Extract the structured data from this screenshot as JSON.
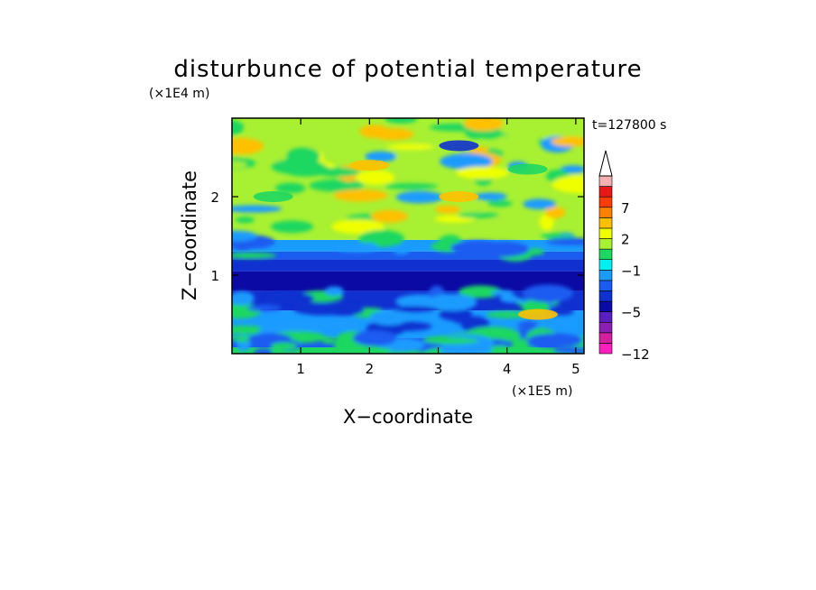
{
  "chart_data": {
    "type": "heatmap",
    "title": "disturbunce of potential temperature",
    "time_label": "t=127800 s",
    "xlabel": "X−coordinate",
    "ylabel": "Z−coordinate",
    "x_unit": "(×1E5 m)",
    "y_unit": "(×1E4 m)",
    "xlim": [
      0,
      5.12
    ],
    "ylim": [
      0,
      3.0
    ],
    "x_ticks": [
      "1",
      "2",
      "3",
      "4",
      "5"
    ],
    "y_ticks": [
      "1",
      "2"
    ],
    "colorbar": {
      "levels": [
        -12,
        -11,
        -9,
        -7,
        -5,
        -4,
        -3,
        -2,
        -1,
        0,
        1,
        2,
        3,
        5,
        7,
        9,
        11
      ],
      "colors": [
        "#ff1fbf",
        "#d41f9e",
        "#8c1fb3",
        "#5a1fc0",
        "#0b0aa5",
        "#1030d0",
        "#1a5cf0",
        "#1a9bff",
        "#00f0f0",
        "#1ed760",
        "#a8f032",
        "#f0ff00",
        "#ffc000",
        "#ff8000",
        "#ff3c00",
        "#e81818",
        "#f4b0b0"
      ],
      "tick_labels": [
        "7",
        "2",
        "−1",
        "−5",
        "−12"
      ],
      "tick_values": [
        7,
        2,
        -1,
        -5,
        -12
      ],
      "extend": "max"
    },
    "bands": [
      {
        "z_range": [
          0.0,
          0.08
        ],
        "value": 0
      },
      {
        "z_range": [
          0.08,
          0.2
        ],
        "value": -2.5
      },
      {
        "z_range": [
          0.2,
          0.55
        ],
        "value": -1.5
      },
      {
        "z_range": [
          0.55,
          0.8
        ],
        "value": -3.5
      },
      {
        "z_range": [
          0.8,
          1.05
        ],
        "value": -4.5
      },
      {
        "z_range": [
          1.05,
          1.2
        ],
        "value": -3.5
      },
      {
        "z_range": [
          1.2,
          1.3
        ],
        "value": -2.5
      },
      {
        "z_range": [
          1.3,
          1.45
        ],
        "value": -1.5
      },
      {
        "z_range": [
          1.45,
          3.0
        ],
        "value": 1.5
      }
    ],
    "features": [
      {
        "x": 2.0,
        "z": 2.4,
        "value": 3.5
      },
      {
        "x": 3.3,
        "z": 2.0,
        "value": 3.5
      },
      {
        "x": 3.3,
        "z": 2.65,
        "value": -3.5
      },
      {
        "x": 4.3,
        "z": 2.35,
        "value": 0.5
      },
      {
        "x": 0.6,
        "z": 2.0,
        "value": 0.5
      },
      {
        "x": 4.45,
        "z": 0.5,
        "value": 4.0
      }
    ]
  }
}
